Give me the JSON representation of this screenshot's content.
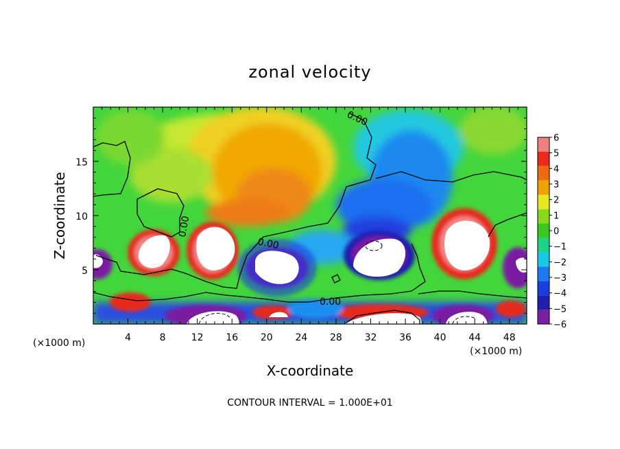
{
  "chart_data": {
    "type": "heatmap",
    "title": "zonal velocity",
    "xlabel": "X-coordinate",
    "ylabel": "Z-coordinate",
    "x_unit_label": "(×1000 m)",
    "footer": "CONTOUR INTERVAL = 1.000E+01",
    "xlim": [
      0,
      50
    ],
    "ylim": [
      0,
      20
    ],
    "x_ticks": [
      4,
      8,
      12,
      16,
      20,
      24,
      28,
      32,
      36,
      40,
      44,
      48
    ],
    "y_ticks": [
      5,
      10,
      15
    ],
    "colorbar": {
      "ticks": [
        6,
        5,
        4,
        3,
        2,
        1,
        0,
        -1,
        -2,
        -3,
        -4,
        -5,
        -6
      ],
      "tick_labels": [
        "6",
        "5",
        "4",
        "3",
        "2",
        "1",
        "0",
        "−1",
        "−2",
        "−3",
        "−4",
        "−5",
        "−6"
      ],
      "range": [
        -6,
        6
      ],
      "colors": [
        "#7a1fa2",
        "#1f1fb0",
        "#1a3ee0",
        "#1e78f0",
        "#18c8e8",
        "#1ed28a",
        "#39c81e",
        "#8ad81e",
        "#e8e81e",
        "#f0a000",
        "#ee6a10",
        "#ee2a1a",
        "#f08080"
      ]
    },
    "contour_labels": [
      "0.00",
      "0.00",
      "0.00",
      "0.00"
    ],
    "features": [
      {
        "type": "positive-core",
        "x": 9.5,
        "z": 6.5,
        "value": 6
      },
      {
        "type": "positive-core",
        "x": 14,
        "z": 7,
        "value": 6
      },
      {
        "type": "positive-core",
        "x": 42.5,
        "z": 7.5,
        "value": 6
      },
      {
        "type": "negative-core",
        "x": 21,
        "z": 5,
        "value": -6
      },
      {
        "type": "negative-core",
        "x": 33.5,
        "z": 6.5,
        "value": -6
      },
      {
        "type": "negative-core",
        "x": 1,
        "z": 5.5,
        "value": -6
      },
      {
        "type": "negative-core",
        "x": 48.5,
        "z": 5,
        "value": -6
      },
      {
        "type": "positive-region",
        "x": 23,
        "z": 14,
        "value": 3
      },
      {
        "type": "negative-region",
        "x": 37,
        "z": 12,
        "value": -4
      }
    ]
  }
}
